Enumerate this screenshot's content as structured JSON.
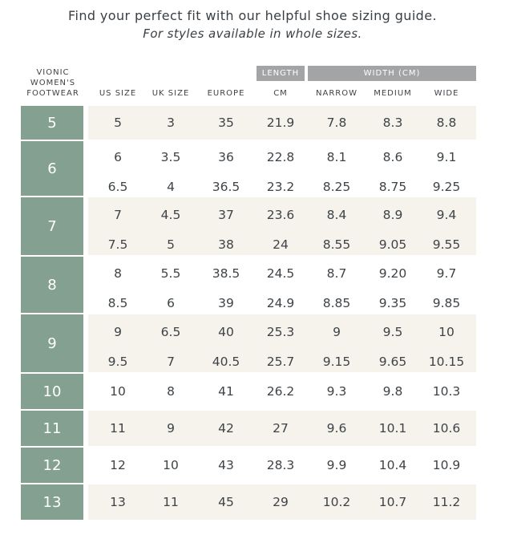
{
  "intro": {
    "line1": "Find your perfect fit with our helpful shoe sizing guide.",
    "line2": "For styles available in whole sizes."
  },
  "table": {
    "brand_header": [
      "VIONIC",
      "WOMEN'S",
      "FOOTWEAR"
    ],
    "group_headers": {
      "length": "LENGTH",
      "width": "WIDTH (CM)"
    },
    "columns": [
      "US SIZE",
      "UK SIZE",
      "EUROPE",
      "CM",
      "NARROW",
      "MEDIUM",
      "WIDE"
    ],
    "groups": [
      {
        "size": "5",
        "rows": [
          [
            "5",
            "3",
            "35",
            "21.9",
            "7.8",
            "8.3",
            "8.8"
          ]
        ]
      },
      {
        "size": "6",
        "rows": [
          [
            "6",
            "3.5",
            "36",
            "22.8",
            "8.1",
            "8.6",
            "9.1"
          ],
          [
            "6.5",
            "4",
            "36.5",
            "23.2",
            "8.25",
            "8.75",
            "9.25"
          ]
        ]
      },
      {
        "size": "7",
        "rows": [
          [
            "7",
            "4.5",
            "37",
            "23.6",
            "8.4",
            "8.9",
            "9.4"
          ],
          [
            "7.5",
            "5",
            "38",
            "24",
            "8.55",
            "9.05",
            "9.55"
          ]
        ]
      },
      {
        "size": "8",
        "rows": [
          [
            "8",
            "5.5",
            "38.5",
            "24.5",
            "8.7",
            "9.20",
            "9.7"
          ],
          [
            "8.5",
            "6",
            "39",
            "24.9",
            "8.85",
            "9.35",
            "9.85"
          ]
        ]
      },
      {
        "size": "9",
        "rows": [
          [
            "9",
            "6.5",
            "40",
            "25.3",
            "9",
            "9.5",
            "10"
          ],
          [
            "9.5",
            "7",
            "40.5",
            "25.7",
            "9.15",
            "9.65",
            "10.15"
          ]
        ]
      },
      {
        "size": "10",
        "rows": [
          [
            "10",
            "8",
            "41",
            "26.2",
            "9.3",
            "9.8",
            "10.3"
          ]
        ]
      },
      {
        "size": "11",
        "rows": [
          [
            "11",
            "9",
            "42",
            "27",
            "9.6",
            "10.1",
            "10.6"
          ]
        ]
      },
      {
        "size": "12",
        "rows": [
          [
            "12",
            "10",
            "43",
            "28.3",
            "9.9",
            "10.4",
            "10.9"
          ]
        ]
      },
      {
        "size": "13",
        "rows": [
          [
            "13",
            "11",
            "45",
            "29",
            "10.2",
            "10.7",
            "11.2"
          ]
        ]
      }
    ]
  },
  "colors": {
    "size_column_bg": "#83a090",
    "header_bar_bg": "#a3a4a5",
    "shaded_row_bg": "#f6f3ec"
  }
}
